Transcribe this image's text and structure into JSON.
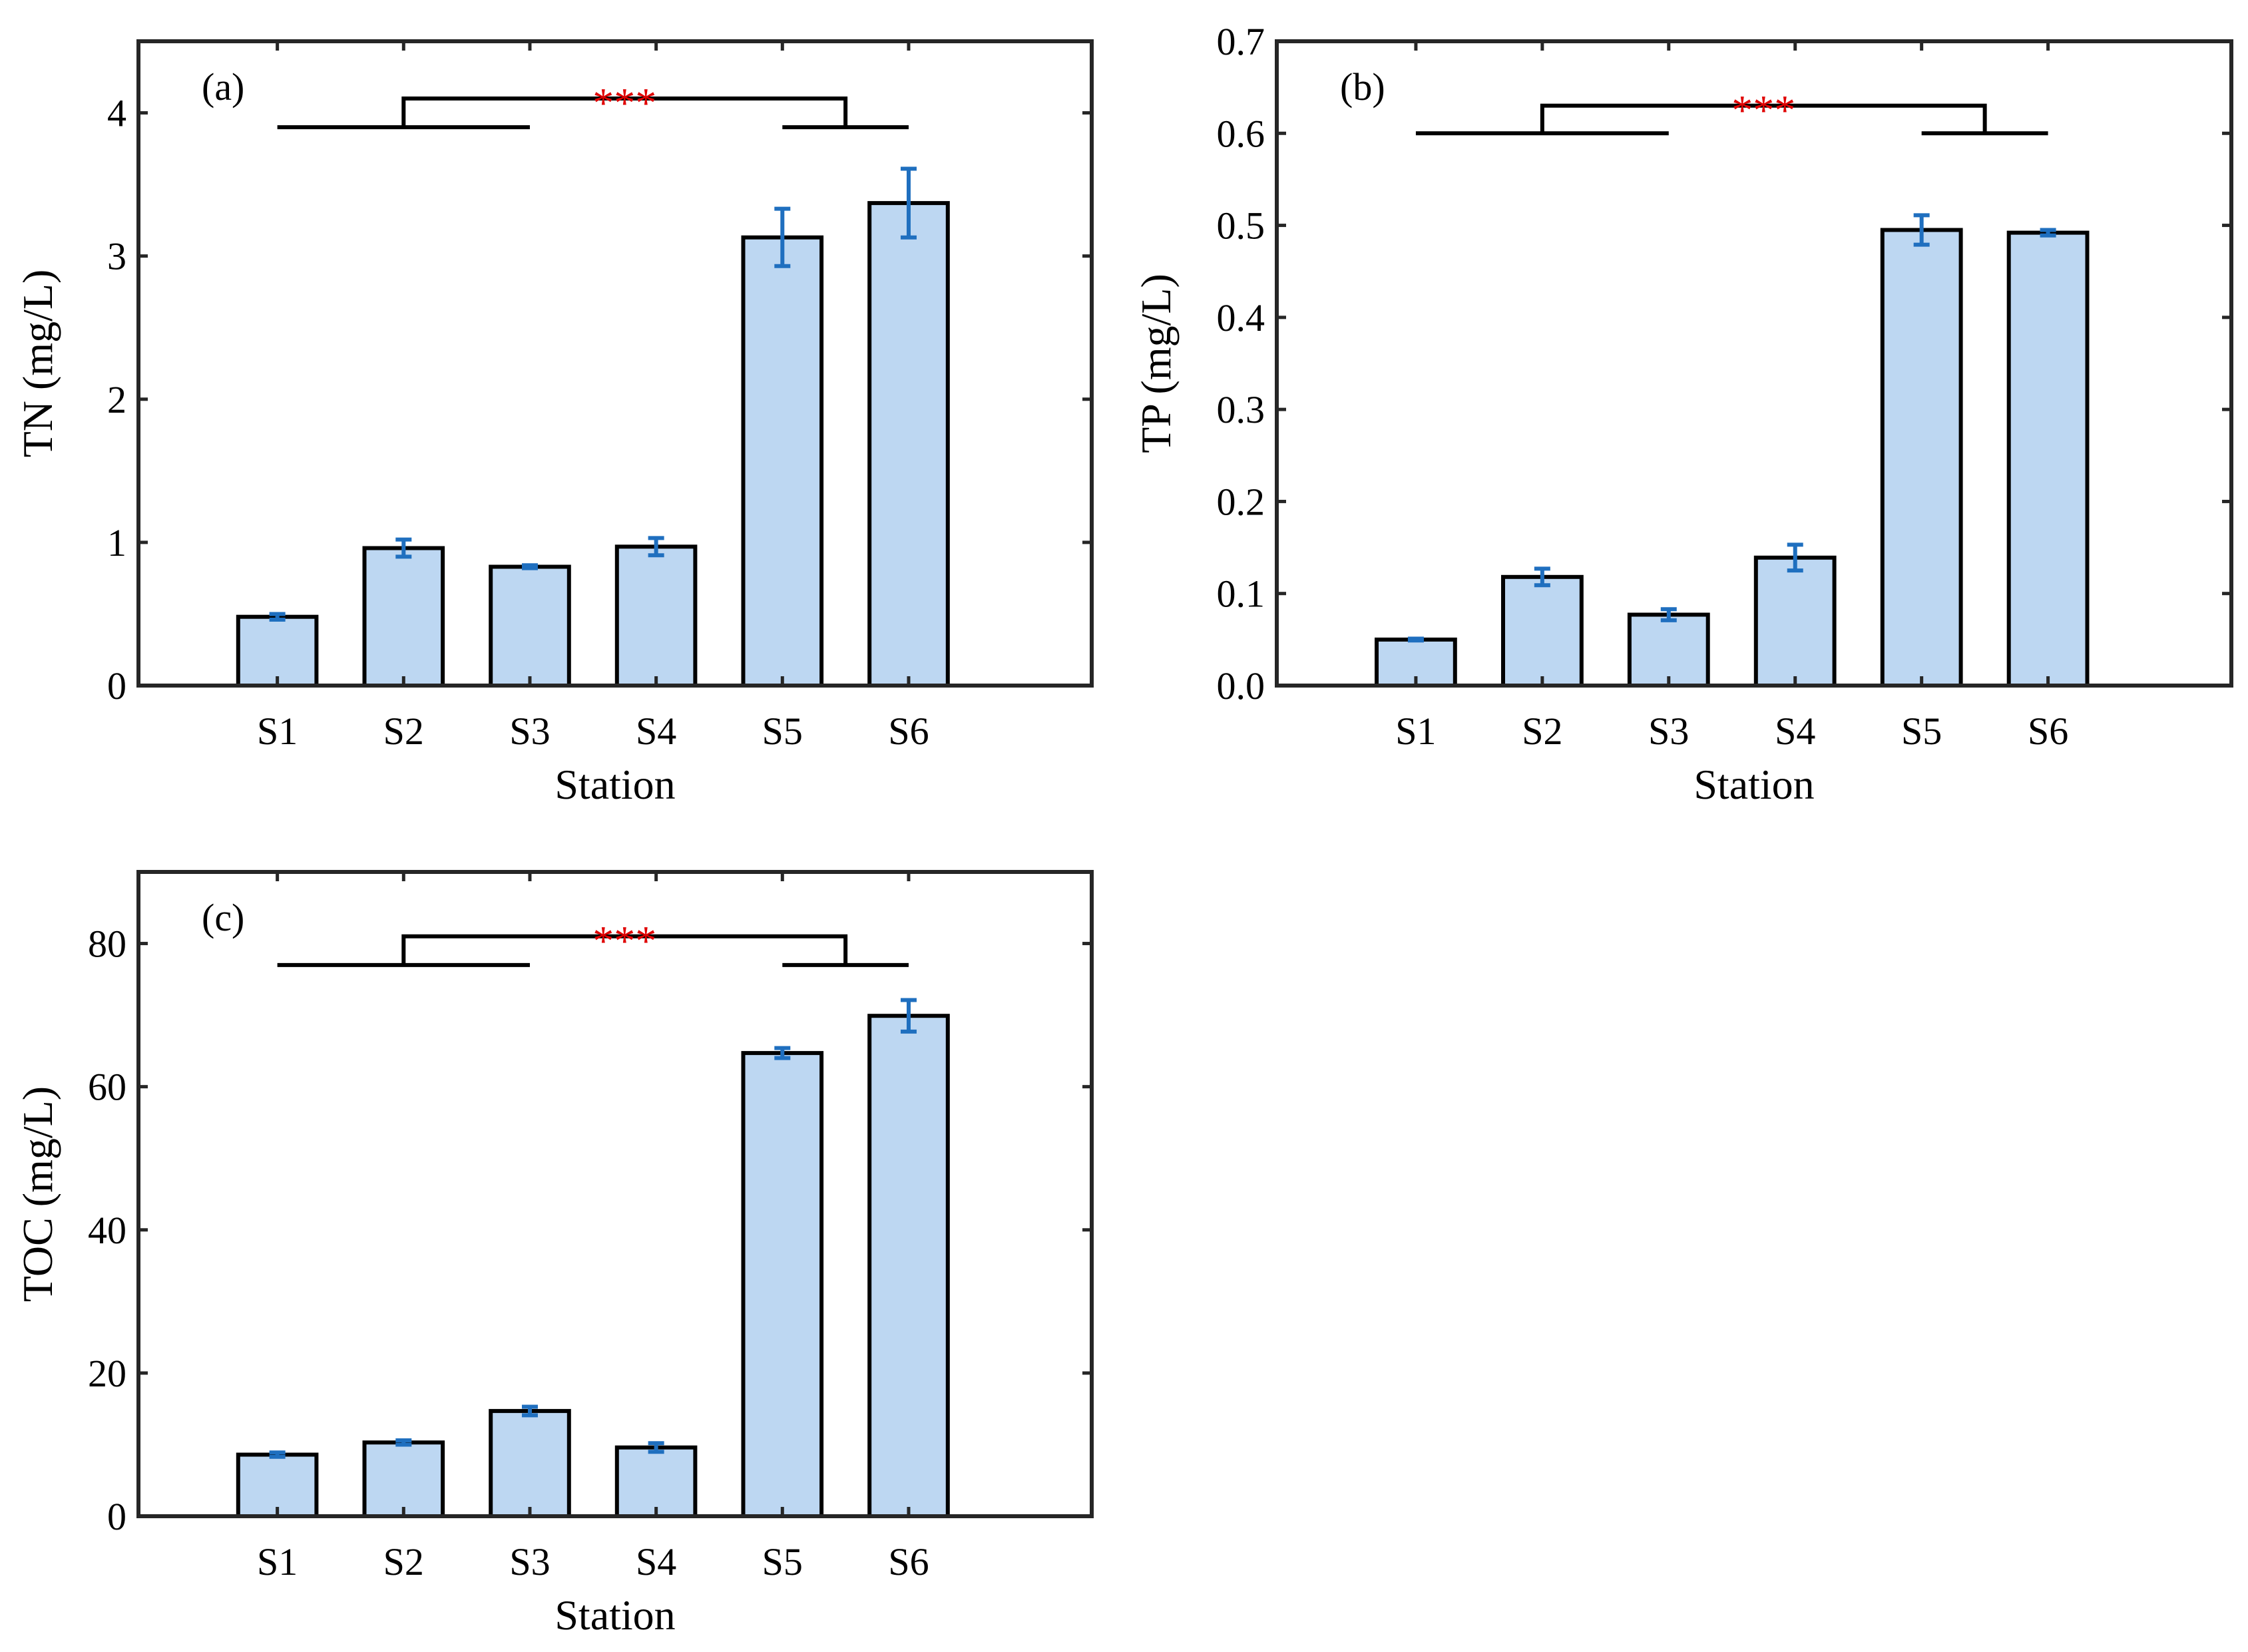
{
  "chart_data": [
    {
      "type": "bar",
      "panel_label": "(a)",
      "categories": [
        "S1",
        "S2",
        "S3",
        "S4",
        "S5",
        "S6"
      ],
      "values": [
        0.48,
        0.96,
        0.83,
        0.97,
        3.13,
        3.37
      ],
      "errors": [
        0.02,
        0.06,
        0.01,
        0.06,
        0.2,
        0.24
      ],
      "xlabel": "Station",
      "ylabel": "TN (mg/L)",
      "ylim": [
        0,
        4.5
      ],
      "yticks": [
        0,
        1,
        2,
        3,
        4
      ],
      "ytick_labels": [
        "0",
        "1",
        "2",
        "3",
        "4"
      ],
      "significance": {
        "label": "***",
        "group1": [
          "S1",
          "S3"
        ],
        "group2": [
          "S5",
          "S6"
        ],
        "group_level": 3.9,
        "top_level": 4.1
      }
    },
    {
      "type": "bar",
      "panel_label": "(b)",
      "categories": [
        "S1",
        "S2",
        "S3",
        "S4",
        "S5",
        "S6"
      ],
      "values": [
        0.05,
        0.118,
        0.077,
        0.139,
        0.495,
        0.492
      ],
      "errors": [
        0.001,
        0.009,
        0.006,
        0.014,
        0.016,
        0.003
      ],
      "xlabel": "Station",
      "ylabel": "TP (mg/L)",
      "ylim": [
        0,
        0.7
      ],
      "yticks": [
        0,
        0.1,
        0.2,
        0.3,
        0.4,
        0.5,
        0.6,
        0.7
      ],
      "ytick_labels": [
        "0.0",
        "0.1",
        "0.2",
        "0.3",
        "0.4",
        "0.5",
        "0.6",
        "0.7"
      ],
      "significance": {
        "label": "***",
        "group1": [
          "S1",
          "S3"
        ],
        "group2": [
          "S5",
          "S6"
        ],
        "group_level": 0.6,
        "top_level": 0.63
      }
    },
    {
      "type": "bar",
      "panel_label": "(c)",
      "categories": [
        "S1",
        "S2",
        "S3",
        "S4",
        "S5",
        "S6"
      ],
      "values": [
        8.6,
        10.3,
        14.7,
        9.6,
        64.7,
        69.9
      ],
      "errors": [
        0.3,
        0.3,
        0.6,
        0.6,
        0.7,
        2.2
      ],
      "xlabel": "Station",
      "ylabel": "TOC (mg/L)",
      "ylim": [
        0,
        90
      ],
      "yticks": [
        0,
        20,
        40,
        60,
        80
      ],
      "ytick_labels": [
        "0",
        "20",
        "40",
        "60",
        "80"
      ],
      "significance": {
        "label": "***",
        "group1": [
          "S1",
          "S3"
        ],
        "group2": [
          "S5",
          "S6"
        ],
        "group_level": 77,
        "top_level": 81
      }
    }
  ],
  "colors": {
    "bar_fill": "#bdd7f2",
    "bar_edge": "#000000",
    "error_bar": "#1f6fbf",
    "significance_text": "#e00000",
    "axis": "#262626"
  }
}
